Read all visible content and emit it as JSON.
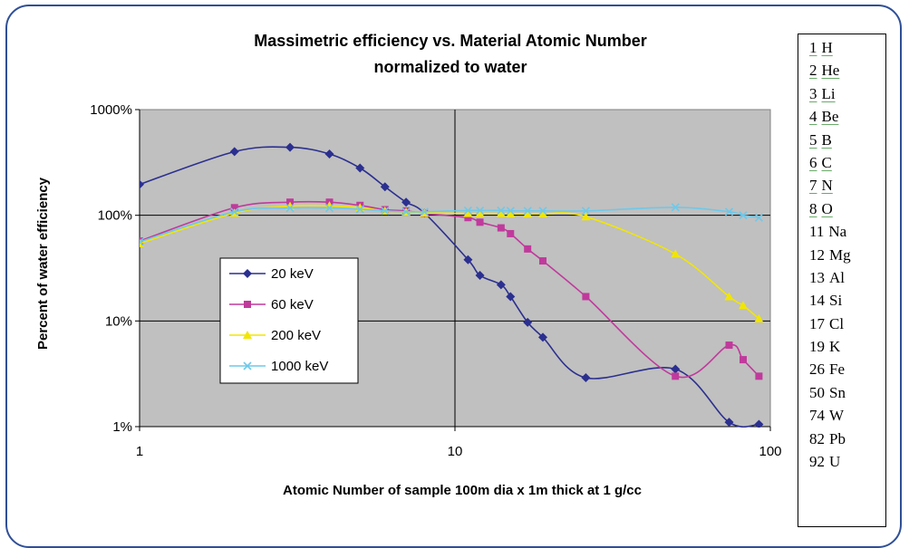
{
  "chart_data": {
    "type": "line",
    "title": "Massimetric efficiency vs. Material Atomic Number",
    "subtitle": "normalized to water",
    "xlabel": "Atomic Number of sample 100m dia x 1m thick at 1 g/cc",
    "ylabel": "Percent of water efficiency",
    "x_scale": "log",
    "y_scale": "log",
    "xlim": [
      1,
      100
    ],
    "ylim": [
      1,
      1000
    ],
    "x_ticks": [
      {
        "value": 1,
        "label": "1"
      },
      {
        "value": 10,
        "label": "10"
      },
      {
        "value": 100,
        "label": "100"
      }
    ],
    "y_ticks": [
      {
        "value": 1,
        "label": "1%"
      },
      {
        "value": 10,
        "label": "10%"
      },
      {
        "value": 100,
        "label": "100%"
      },
      {
        "value": 1000,
        "label": "1000%"
      }
    ],
    "grid": "major",
    "legend_position": "left-center, inside plot",
    "series": [
      {
        "name": "20 keV",
        "color": "#2b2f8f",
        "marker": "diamond",
        "points": [
          [
            1,
            196
          ],
          [
            2,
            400
          ],
          [
            3,
            440
          ],
          [
            4,
            380
          ],
          [
            5,
            280
          ],
          [
            6,
            186
          ],
          [
            7,
            133
          ],
          [
            8,
            105
          ],
          [
            11,
            38
          ],
          [
            12,
            27
          ],
          [
            14,
            22
          ],
          [
            15,
            17
          ],
          [
            17,
            9.7
          ],
          [
            19,
            7
          ],
          [
            26,
            2.9
          ],
          [
            50,
            3.5
          ],
          [
            74,
            1.1
          ],
          [
            92,
            1.05
          ]
        ]
      },
      {
        "name": "60 keV",
        "color": "#c03a9c",
        "marker": "square",
        "points": [
          [
            1,
            57
          ],
          [
            2,
            118
          ],
          [
            3,
            133
          ],
          [
            4,
            133
          ],
          [
            5,
            124
          ],
          [
            6,
            113
          ],
          [
            7,
            110
          ],
          [
            8,
            104
          ],
          [
            11,
            95
          ],
          [
            12,
            86
          ],
          [
            14,
            76
          ],
          [
            15,
            67
          ],
          [
            17,
            48
          ],
          [
            19,
            37
          ],
          [
            26,
            17
          ],
          [
            50,
            3.0
          ],
          [
            74,
            5.9
          ],
          [
            82,
            4.3
          ],
          [
            92,
            3.0
          ]
        ]
      },
      {
        "name": "200 keV",
        "color": "#f2e600",
        "marker": "triangle",
        "points": [
          [
            1,
            54
          ],
          [
            2,
            105
          ],
          [
            3,
            122
          ],
          [
            4,
            123
          ],
          [
            5,
            118
          ],
          [
            6,
            110
          ],
          [
            7,
            107
          ],
          [
            8,
            105
          ],
          [
            11,
            104
          ],
          [
            12,
            104
          ],
          [
            14,
            104
          ],
          [
            15,
            103
          ],
          [
            17,
            103
          ],
          [
            19,
            103
          ],
          [
            26,
            97
          ],
          [
            50,
            43
          ],
          [
            74,
            17
          ],
          [
            82,
            14
          ],
          [
            92,
            10.5
          ]
        ]
      },
      {
        "name": "1000 keV",
        "color": "#6fc8e8",
        "marker": "x",
        "points": [
          [
            1,
            56
          ],
          [
            2,
            108
          ],
          [
            3,
            117
          ],
          [
            4,
            117
          ],
          [
            5,
            114
          ],
          [
            6,
            110
          ],
          [
            7,
            108
          ],
          [
            8,
            108
          ],
          [
            11,
            111
          ],
          [
            12,
            111
          ],
          [
            14,
            111
          ],
          [
            15,
            110
          ],
          [
            17,
            110
          ],
          [
            19,
            110
          ],
          [
            26,
            110
          ],
          [
            50,
            119
          ],
          [
            74,
            108
          ],
          [
            82,
            100
          ],
          [
            92,
            95
          ]
        ]
      }
    ]
  },
  "element_table": [
    {
      "number": "1",
      "symbol": "H",
      "underlined": true
    },
    {
      "number": "2",
      "symbol": "He",
      "underlined": true
    },
    {
      "number": "3",
      "symbol": "Li",
      "underlined": true
    },
    {
      "number": "4",
      "symbol": "Be",
      "underlined": true
    },
    {
      "number": "5",
      "symbol": "B",
      "underlined": true
    },
    {
      "number": "6",
      "symbol": "C",
      "underlined": true
    },
    {
      "number": "7",
      "symbol": "N",
      "underlined": true
    },
    {
      "number": "8",
      "symbol": "O",
      "underlined": true
    },
    {
      "number": "11",
      "symbol": "Na",
      "underlined": false
    },
    {
      "number": "12",
      "symbol": "Mg",
      "underlined": false
    },
    {
      "number": "13",
      "symbol": "Al",
      "underlined": false
    },
    {
      "number": "14",
      "symbol": "Si",
      "underlined": false
    },
    {
      "number": "17",
      "symbol": "Cl",
      "underlined": false
    },
    {
      "number": "19",
      "symbol": "K",
      "underlined": false
    },
    {
      "number": "26",
      "symbol": "Fe",
      "underlined": false
    },
    {
      "number": "50",
      "symbol": "Sn",
      "underlined": false
    },
    {
      "number": "74",
      "symbol": "W",
      "underlined": false
    },
    {
      "number": "82",
      "symbol": "Pb",
      "underlined": false
    },
    {
      "number": "92",
      "symbol": "U",
      "underlined": false
    }
  ],
  "colors": {
    "frame_border": "#2f4f97",
    "plot_background": "#c0c0c0",
    "gridline": "#000000"
  }
}
